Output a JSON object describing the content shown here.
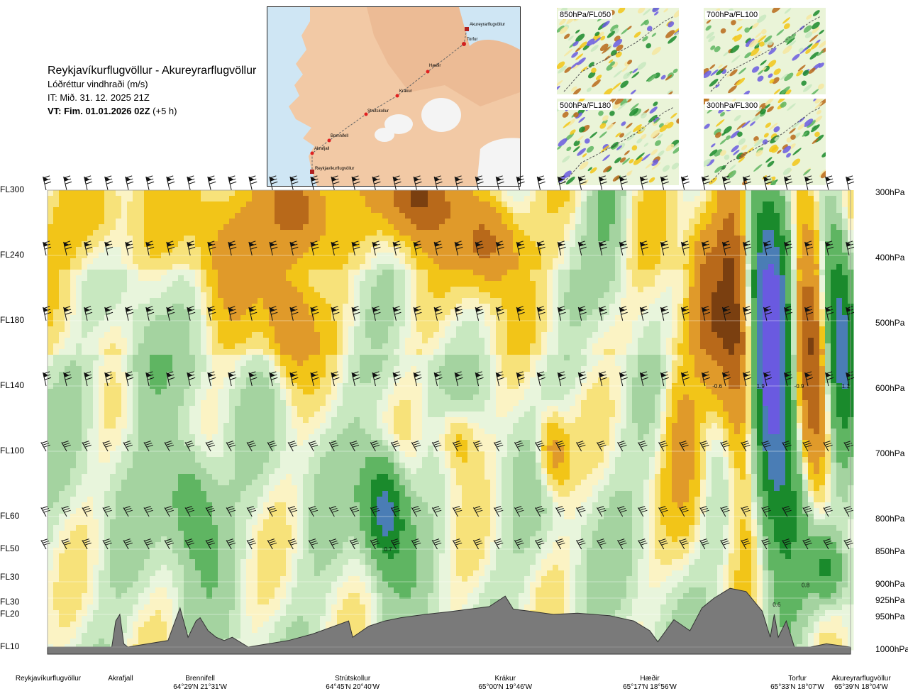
{
  "header": {
    "route_title": "Reykjavíkurflugvöllur - Akureyrarflugvöllur",
    "variable": "Lóðréttur vindhraði (m/s)",
    "issue_time": "IT: Mið. 31. 12. 2025 21Z",
    "valid_time_prefix": "VT: Fim. 01.01.2026 02Z",
    "valid_time_suffix": " (+5 h)"
  },
  "map": {
    "waypoints": [
      "Akureyrarflugvöllur",
      "Torfur",
      "Hæðir",
      "Krákur",
      "Strútskollur",
      "Brennifell",
      "Akrafjall",
      "Reykjavíkurflugvöllur"
    ]
  },
  "insets": [
    {
      "label": "850hPa/FL050"
    },
    {
      "label": "700hPa/FL100"
    },
    {
      "label": "500hPa/FL180"
    },
    {
      "label": "300hPa/FL300"
    }
  ],
  "chart_data": {
    "type": "heatmap",
    "title": "Reykjavíkurflugvöllur - Akureyrarflugvöllur",
    "quantity": "Lóðréttur vindhraði (m/s)",
    "x_axis": "distance along route",
    "x_stations": [
      {
        "name": "Reykjavíkurflugvöllur",
        "coord": "",
        "x": 0.0
      },
      {
        "name": "Akrafjall",
        "coord": "",
        "x": 0.09
      },
      {
        "name": "Brennifell",
        "coord": "64°29'N 21°31'W",
        "x": 0.19
      },
      {
        "name": "Strútskollur",
        "coord": "64°45'N 20°40'W",
        "x": 0.38
      },
      {
        "name": "Krákur",
        "coord": "65°00'N 19°46'W",
        "x": 0.57
      },
      {
        "name": "Hæðir",
        "coord": "65°17'N 18°56'W",
        "x": 0.75
      },
      {
        "name": "Torfur",
        "coord": "65°33'N 18°07'W",
        "x": 0.93
      },
      {
        "name": "Akureyrarflugvöllur",
        "coord": "65°39'N 18°04'W",
        "x": 1.0
      }
    ],
    "flight_levels": [
      {
        "label": "FL300",
        "hpa": 300
      },
      {
        "label": "FL240",
        "hpa": 400
      },
      {
        "label": "FL180",
        "hpa": 500
      },
      {
        "label": "FL140",
        "hpa": 600
      },
      {
        "label": "FL100",
        "hpa": 700
      },
      {
        "label": "FL60",
        "hpa": 800
      },
      {
        "label": "FL50",
        "hpa": 850
      },
      {
        "label": "FL30",
        "hpa": 900
      },
      {
        "label": "FL30",
        "hpa": 925
      },
      {
        "label": "FL20",
        "hpa": 950
      },
      {
        "label": "FL10",
        "hpa": 1000
      }
    ],
    "pressure_labels": [
      "300hPa",
      "400hPa",
      "500hPa",
      "600hPa",
      "700hPa",
      "800hPa",
      "850hPa",
      "900hPa",
      "925hPa",
      "950hPa",
      "1000hPa"
    ],
    "y_range_hpa": [
      300,
      1000
    ],
    "color_scale": [
      {
        "max": -1.5,
        "color": "#7a3f10"
      },
      {
        "max": -1.0,
        "color": "#b8691a"
      },
      {
        "max": -0.5,
        "color": "#e09a2a"
      },
      {
        "max": -0.25,
        "color": "#f2c518"
      },
      {
        "max": -0.1,
        "color": "#f7e27a"
      },
      {
        "max": 0.0,
        "color": "#fbf3c4"
      },
      {
        "max": 0.1,
        "color": "#e8f5dc"
      },
      {
        "max": 0.25,
        "color": "#c8e8c0"
      },
      {
        "max": 0.5,
        "color": "#a4d3a0"
      },
      {
        "max": 1.0,
        "color": "#5fb562"
      },
      {
        "max": 1.5,
        "color": "#1a8a2c"
      },
      {
        "max": 2.0,
        "color": "#4a7db5"
      },
      {
        "max": 99,
        "color": "#6a5ae0"
      }
    ],
    "field_features": [
      {
        "x": 0.31,
        "hpa": 330,
        "amp": -1.4,
        "sx": 0.04,
        "sy": 70
      },
      {
        "x": 0.46,
        "hpa": 310,
        "amp": -1.6,
        "sx": 0.04,
        "sy": 60
      },
      {
        "x": 0.55,
        "hpa": 380,
        "amp": -1.2,
        "sx": 0.035,
        "sy": 70
      },
      {
        "x": 0.3,
        "hpa": 500,
        "amp": -0.9,
        "sx": 0.03,
        "sy": 90
      },
      {
        "x": 0.22,
        "hpa": 400,
        "amp": -0.5,
        "sx": 0.04,
        "sy": 120
      },
      {
        "x": 0.06,
        "hpa": 340,
        "amp": -0.45,
        "sx": 0.04,
        "sy": 70
      },
      {
        "x": 0.12,
        "hpa": 560,
        "amp": 0.45,
        "sx": 0.03,
        "sy": 100
      },
      {
        "x": 0.18,
        "hpa": 780,
        "amp": 0.9,
        "sx": 0.03,
        "sy": 90
      },
      {
        "x": 0.42,
        "hpa": 790,
        "amp": 1.8,
        "sx": 0.025,
        "sy": 80
      },
      {
        "x": 0.51,
        "hpa": 680,
        "amp": -0.6,
        "sx": 0.025,
        "sy": 60
      },
      {
        "x": 0.63,
        "hpa": 700,
        "amp": -0.9,
        "sx": 0.02,
        "sy": 60
      },
      {
        "x": 0.7,
        "hpa": 330,
        "amp": 0.6,
        "sx": 0.03,
        "sy": 120
      },
      {
        "x": 0.79,
        "hpa": 660,
        "amp": -0.7,
        "sx": 0.025,
        "sy": 150
      },
      {
        "x": 0.82,
        "hpa": 470,
        "amp": -1.0,
        "sx": 0.02,
        "sy": 120
      },
      {
        "x": 0.86,
        "hpa": 520,
        "amp": -1.8,
        "sx": 0.025,
        "sy": 260
      },
      {
        "x": 0.9,
        "hpa": 560,
        "amp": 2.6,
        "sx": 0.03,
        "sy": 280
      },
      {
        "x": 0.95,
        "hpa": 560,
        "amp": -1.6,
        "sx": 0.02,
        "sy": 220
      },
      {
        "x": 0.985,
        "hpa": 500,
        "amp": 1.6,
        "sx": 0.02,
        "sy": 200
      },
      {
        "x": 0.97,
        "hpa": 880,
        "amp": 1.0,
        "sx": 0.02,
        "sy": 50
      }
    ],
    "terrain_hpa": [
      [
        0.0,
        1000
      ],
      [
        0.08,
        1000
      ],
      [
        0.085,
        960
      ],
      [
        0.09,
        950
      ],
      [
        0.095,
        995
      ],
      [
        0.1,
        1000
      ],
      [
        0.15,
        990
      ],
      [
        0.165,
        940
      ],
      [
        0.175,
        985
      ],
      [
        0.185,
        960
      ],
      [
        0.19,
        955
      ],
      [
        0.2,
        975
      ],
      [
        0.21,
        985
      ],
      [
        0.22,
        990
      ],
      [
        0.23,
        985
      ],
      [
        0.25,
        1000
      ],
      [
        0.3,
        990
      ],
      [
        0.33,
        980
      ],
      [
        0.375,
        960
      ],
      [
        0.38,
        985
      ],
      [
        0.4,
        968
      ],
      [
        0.42,
        960
      ],
      [
        0.44,
        955
      ],
      [
        0.47,
        950
      ],
      [
        0.5,
        946
      ],
      [
        0.55,
        938
      ],
      [
        0.57,
        922
      ],
      [
        0.58,
        942
      ],
      [
        0.6,
        945
      ],
      [
        0.63,
        950
      ],
      [
        0.66,
        948
      ],
      [
        0.7,
        952
      ],
      [
        0.73,
        960
      ],
      [
        0.75,
        975
      ],
      [
        0.76,
        992
      ],
      [
        0.77,
        975
      ],
      [
        0.78,
        958
      ],
      [
        0.8,
        975
      ],
      [
        0.815,
        940
      ],
      [
        0.83,
        925
      ],
      [
        0.85,
        910
      ],
      [
        0.87,
        915
      ],
      [
        0.89,
        945
      ],
      [
        0.9,
        985
      ],
      [
        0.905,
        950
      ],
      [
        0.91,
        985
      ],
      [
        0.92,
        960
      ],
      [
        0.93,
        1000
      ],
      [
        0.95,
        1000
      ],
      [
        0.97,
        995
      ],
      [
        1.0,
        1000
      ]
    ],
    "contour_labels": [
      {
        "text": "0.7",
        "x": 0.424,
        "hpa": 850
      },
      {
        "text": "-0.6",
        "x": 0.834,
        "hpa": 600
      },
      {
        "text": "1.9",
        "x": 0.888,
        "hpa": 600
      },
      {
        "text": "-0.9",
        "x": 0.936,
        "hpa": 600
      },
      {
        "text": "1.1",
        "x": 0.994,
        "hpa": 600
      },
      {
        "text": "0.8",
        "x": 0.944,
        "hpa": 905
      },
      {
        "text": "0.6",
        "x": 0.908,
        "hpa": 935
      }
    ]
  }
}
